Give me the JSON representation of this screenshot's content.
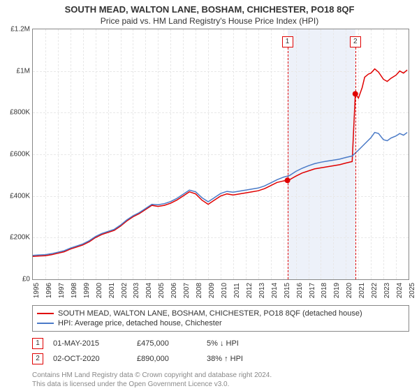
{
  "title": "SOUTH MEAD, WALTON LANE, BOSHAM, CHICHESTER, PO18 8QF",
  "subtitle": "Price paid vs. HM Land Registry's House Price Index (HPI)",
  "chart": {
    "type": "line",
    "background_color": "#ffffff",
    "grid_color": "#e8e8e8",
    "border_color": "#888888",
    "ylim": [
      0,
      1200000
    ],
    "yticks": [
      0,
      200000,
      400000,
      600000,
      800000,
      1000000,
      1200000
    ],
    "ytick_labels": [
      "£0",
      "£200K",
      "£400K",
      "£600K",
      "£800K",
      "£1M",
      "£1.2M"
    ],
    "xlim": [
      1995,
      2025
    ],
    "xticks": [
      1995,
      1996,
      1997,
      1998,
      1999,
      2000,
      2001,
      2002,
      2003,
      2004,
      2005,
      2006,
      2007,
      2008,
      2009,
      2010,
      2011,
      2012,
      2013,
      2014,
      2015,
      2016,
      2017,
      2018,
      2019,
      2020,
      2021,
      2022,
      2023,
      2024,
      2025
    ],
    "label_fontsize": 10,
    "title_fontsize": 13,
    "series": [
      {
        "name": "property",
        "color": "#e00000",
        "line_width": 1.5,
        "points": [
          [
            1995,
            110000
          ],
          [
            1995.5,
            112000
          ],
          [
            1996,
            113000
          ],
          [
            1996.5,
            118000
          ],
          [
            1997,
            125000
          ],
          [
            1997.5,
            132000
          ],
          [
            1998,
            145000
          ],
          [
            1998.5,
            155000
          ],
          [
            1999,
            165000
          ],
          [
            1999.5,
            180000
          ],
          [
            2000,
            200000
          ],
          [
            2000.5,
            215000
          ],
          [
            2001,
            225000
          ],
          [
            2001.5,
            235000
          ],
          [
            2002,
            255000
          ],
          [
            2002.5,
            280000
          ],
          [
            2003,
            300000
          ],
          [
            2003.5,
            315000
          ],
          [
            2004,
            335000
          ],
          [
            2004.5,
            355000
          ],
          [
            2005,
            350000
          ],
          [
            2005.5,
            355000
          ],
          [
            2006,
            365000
          ],
          [
            2006.5,
            380000
          ],
          [
            2007,
            400000
          ],
          [
            2007.5,
            420000
          ],
          [
            2008,
            410000
          ],
          [
            2008.5,
            380000
          ],
          [
            2009,
            360000
          ],
          [
            2009.5,
            380000
          ],
          [
            2010,
            400000
          ],
          [
            2010.5,
            410000
          ],
          [
            2011,
            405000
          ],
          [
            2011.5,
            410000
          ],
          [
            2012,
            415000
          ],
          [
            2012.5,
            420000
          ],
          [
            2013,
            425000
          ],
          [
            2013.5,
            435000
          ],
          [
            2014,
            450000
          ],
          [
            2014.5,
            465000
          ],
          [
            2015,
            472000
          ],
          [
            2015.33,
            475000
          ],
          [
            2015.5,
            478000
          ],
          [
            2016,
            495000
          ],
          [
            2016.5,
            510000
          ],
          [
            2017,
            520000
          ],
          [
            2017.5,
            530000
          ],
          [
            2018,
            535000
          ],
          [
            2018.5,
            540000
          ],
          [
            2019,
            545000
          ],
          [
            2019.5,
            550000
          ],
          [
            2020,
            558000
          ],
          [
            2020.5,
            565000
          ],
          [
            2020.75,
            890000
          ],
          [
            2021,
            870000
          ],
          [
            2021.3,
            920000
          ],
          [
            2021.5,
            970000
          ],
          [
            2021.8,
            985000
          ],
          [
            2022,
            990000
          ],
          [
            2022.3,
            1010000
          ],
          [
            2022.6,
            995000
          ],
          [
            2023,
            960000
          ],
          [
            2023.3,
            950000
          ],
          [
            2023.6,
            965000
          ],
          [
            2024,
            980000
          ],
          [
            2024.3,
            1000000
          ],
          [
            2024.6,
            990000
          ],
          [
            2024.9,
            1005000
          ]
        ]
      },
      {
        "name": "hpi",
        "color": "#4a7ac7",
        "line_width": 1.5,
        "points": [
          [
            1995,
            115000
          ],
          [
            1995.5,
            117000
          ],
          [
            1996,
            118000
          ],
          [
            1996.5,
            123000
          ],
          [
            1997,
            130000
          ],
          [
            1997.5,
            137000
          ],
          [
            1998,
            150000
          ],
          [
            1998.5,
            160000
          ],
          [
            1999,
            170000
          ],
          [
            1999.5,
            185000
          ],
          [
            2000,
            205000
          ],
          [
            2000.5,
            220000
          ],
          [
            2001,
            230000
          ],
          [
            2001.5,
            240000
          ],
          [
            2002,
            260000
          ],
          [
            2002.5,
            285000
          ],
          [
            2003,
            305000
          ],
          [
            2003.5,
            320000
          ],
          [
            2004,
            340000
          ],
          [
            2004.5,
            360000
          ],
          [
            2005,
            358000
          ],
          [
            2005.5,
            363000
          ],
          [
            2006,
            373000
          ],
          [
            2006.5,
            388000
          ],
          [
            2007,
            408000
          ],
          [
            2007.5,
            428000
          ],
          [
            2008,
            420000
          ],
          [
            2008.5,
            392000
          ],
          [
            2009,
            372000
          ],
          [
            2009.5,
            392000
          ],
          [
            2010,
            412000
          ],
          [
            2010.5,
            422000
          ],
          [
            2011,
            418000
          ],
          [
            2011.5,
            423000
          ],
          [
            2012,
            428000
          ],
          [
            2012.5,
            433000
          ],
          [
            2013,
            438000
          ],
          [
            2013.5,
            448000
          ],
          [
            2014,
            463000
          ],
          [
            2014.5,
            478000
          ],
          [
            2015,
            490000
          ],
          [
            2015.5,
            498000
          ],
          [
            2016,
            518000
          ],
          [
            2016.5,
            533000
          ],
          [
            2017,
            545000
          ],
          [
            2017.5,
            555000
          ],
          [
            2018,
            562000
          ],
          [
            2018.5,
            567000
          ],
          [
            2019,
            572000
          ],
          [
            2019.5,
            577000
          ],
          [
            2020,
            585000
          ],
          [
            2020.5,
            592000
          ],
          [
            2021,
            620000
          ],
          [
            2021.5,
            650000
          ],
          [
            2022,
            680000
          ],
          [
            2022.3,
            705000
          ],
          [
            2022.6,
            700000
          ],
          [
            2023,
            670000
          ],
          [
            2023.3,
            665000
          ],
          [
            2023.6,
            678000
          ],
          [
            2024,
            688000
          ],
          [
            2024.3,
            700000
          ],
          [
            2024.6,
            692000
          ],
          [
            2024.9,
            705000
          ]
        ]
      }
    ],
    "sale_markers": [
      {
        "x": 2015.33,
        "y": 475000,
        "color": "#e00000",
        "radius": 4
      },
      {
        "x": 2020.75,
        "y": 890000,
        "color": "#e00000",
        "radius": 4
      }
    ],
    "flags": [
      {
        "label": "1",
        "x": 2015.33
      },
      {
        "label": "2",
        "x": 2020.75
      }
    ],
    "shaded_range": {
      "from": 2015.33,
      "to": 2020.75,
      "color": "#e8eef7"
    }
  },
  "legend": {
    "items": [
      {
        "color": "#e00000",
        "label": "SOUTH MEAD, WALTON LANE, BOSHAM, CHICHESTER, PO18 8QF (detached house)"
      },
      {
        "color": "#4a7ac7",
        "label": "HPI: Average price, detached house, Chichester"
      }
    ]
  },
  "sales": [
    {
      "flag": "1",
      "date": "01-MAY-2015",
      "price": "£475,000",
      "change_pct": "5%",
      "direction": "down",
      "vs": "HPI"
    },
    {
      "flag": "2",
      "date": "02-OCT-2020",
      "price": "£890,000",
      "change_pct": "38%",
      "direction": "up",
      "vs": "HPI"
    }
  ],
  "footer": {
    "line1": "Contains HM Land Registry data © Crown copyright and database right 2024.",
    "line2": "This data is licensed under the Open Government Licence v3.0."
  },
  "colors": {
    "flag_border": "#e00000",
    "text": "#333333",
    "muted": "#888888"
  }
}
